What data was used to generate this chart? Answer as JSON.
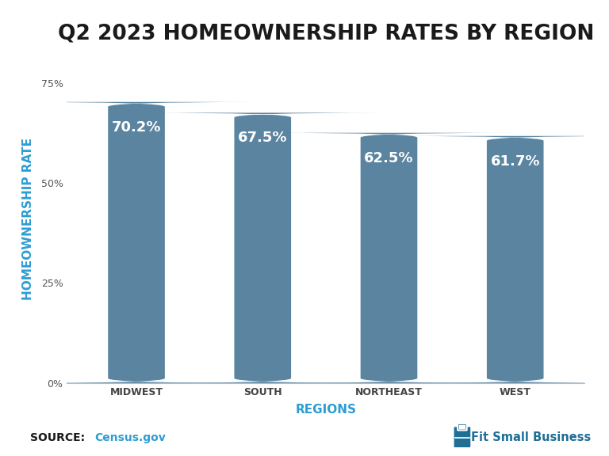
{
  "title": "Q2 2023 HOMEOWNERSHIP RATES BY REGION",
  "categories": [
    "MIDWEST",
    "SOUTH",
    "NORTHEAST",
    "WEST"
  ],
  "values": [
    70.2,
    67.5,
    62.5,
    61.7
  ],
  "bar_color": "#5b84a0",
  "bar_labels": [
    "70.2%",
    "67.5%",
    "62.5%",
    "61.7%"
  ],
  "xlabel": "REGIONS",
  "ylabel": "HOMEOWNERSHIP RATE",
  "yticks": [
    0,
    25,
    50,
    75
  ],
  "ytick_labels": [
    "0%",
    "25%",
    "50%",
    "75%"
  ],
  "ylim": [
    0,
    82
  ],
  "title_fontsize": 19,
  "axis_label_fontsize": 11,
  "tick_fontsize": 9,
  "bar_label_fontsize": 13,
  "source_text": "SOURCE: ",
  "source_link": "Census.gov",
  "source_link_color": "#2d9dd4",
  "brand_text": "Fit Small Business",
  "brand_color": "#1e6e96",
  "background_color": "#ffffff",
  "xlabel_color": "#2d9dd4",
  "ylabel_color": "#2d9dd4",
  "title_color": "#1a1a1a"
}
